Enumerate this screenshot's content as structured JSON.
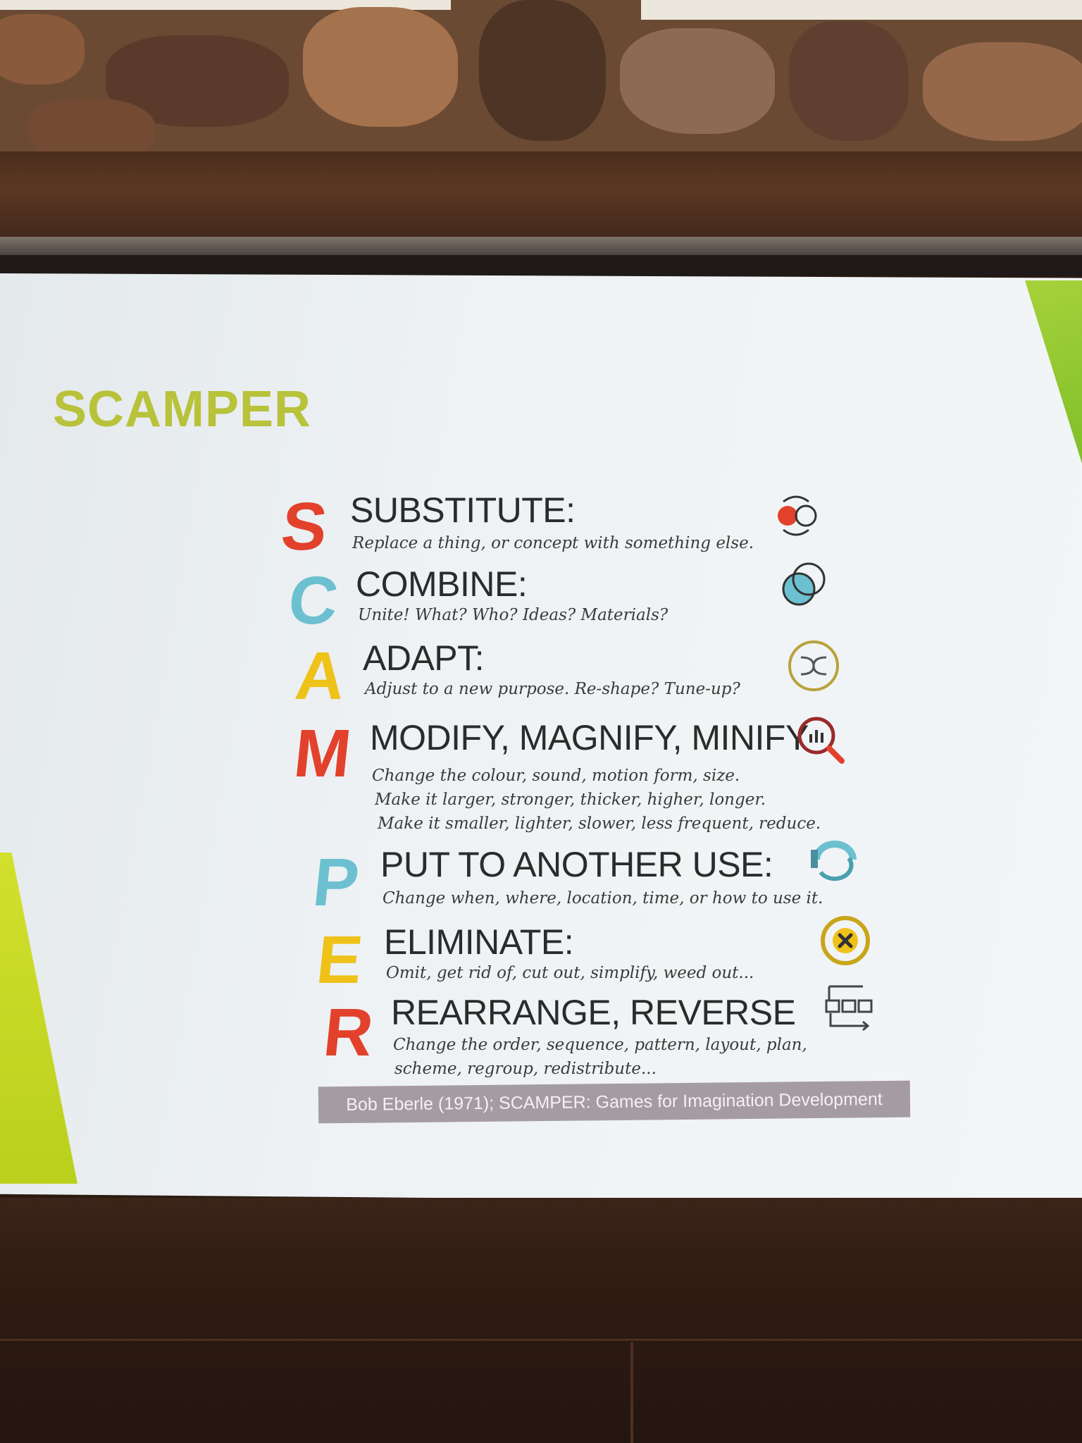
{
  "slide": {
    "title": "SCAMPER",
    "citation": "Bob Eberle (1971); SCAMPER: Games for Imagination Development",
    "items": [
      {
        "letter": "S",
        "color": "#e2412c",
        "heading": "SUBSTITUTE:",
        "lines": [
          "Replace a thing, or concept with something else."
        ],
        "icon": "swap-circles-icon"
      },
      {
        "letter": "C",
        "color": "#6cc0d0",
        "heading": "COMBINE:",
        "lines": [
          "Unite! What? Who? Ideas? Materials?"
        ],
        "icon": "overlapping-circles-icon"
      },
      {
        "letter": "A",
        "color": "#efc21a",
        "heading": "ADAPT:",
        "lines": [
          "Adjust to a new purpose. Re-shape? Tune-up?"
        ],
        "icon": "adapt-arrows-icon"
      },
      {
        "letter": "M",
        "color": "#e2412c",
        "heading": "MODIFY, MAGNIFY, MINIFY",
        "lines": [
          "Change the colour, sound, motion form, size.",
          "Make it larger, stronger, thicker, higher, longer.",
          "Make it smaller, lighter, slower, less frequent, reduce."
        ],
        "icon": "magnifier-chart-icon"
      },
      {
        "letter": "P",
        "color": "#6cc0d0",
        "heading": "PUT TO ANOTHER USE:",
        "lines": [
          "Change when, where, location, time, or how to use it."
        ],
        "icon": "rotate-arrow-icon"
      },
      {
        "letter": "E",
        "color": "#efc21a",
        "heading": "ELIMINATE:",
        "lines": [
          "Omit, get rid of, cut out, simplify, weed out..."
        ],
        "icon": "remove-circle-icon"
      },
      {
        "letter": "R",
        "color": "#e2412c",
        "heading": "REARRANGE, REVERSE",
        "lines": [
          "Change the order, sequence, pattern, layout, plan,",
          "scheme, regroup, redistribute..."
        ],
        "icon": "rearrange-blocks-icon"
      }
    ]
  }
}
